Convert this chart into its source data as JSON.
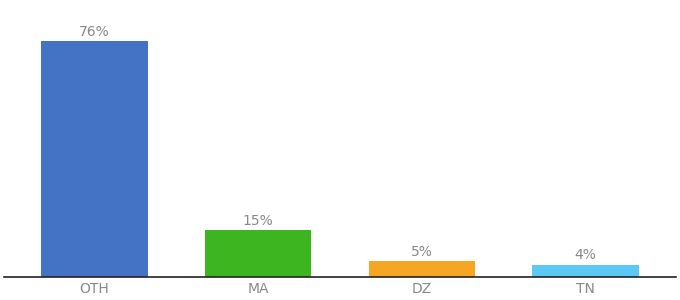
{
  "categories": [
    "OTH",
    "MA",
    "DZ",
    "TN"
  ],
  "values": [
    76,
    15,
    5,
    4
  ],
  "bar_colors": [
    "#4472c4",
    "#3cb521",
    "#f5a623",
    "#5bc8f5"
  ],
  "label_texts": [
    "76%",
    "15%",
    "5%",
    "4%"
  ],
  "ylim": [
    0,
    88
  ],
  "background_color": "#ffffff",
  "label_color": "#888888",
  "tick_color": "#888888",
  "bar_width": 0.65,
  "x_positions": [
    0,
    1,
    2,
    3
  ]
}
